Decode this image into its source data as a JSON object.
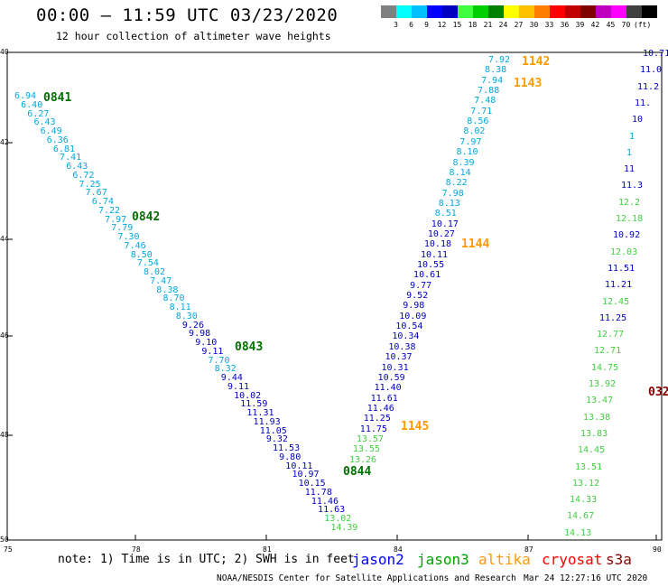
{
  "header": {
    "title": "00:00 – 11:59 UTC 03/23/2020",
    "subtitle": "12 hour collection of altimeter wave heights"
  },
  "scale": {
    "colors": [
      "#808080",
      "#00ffff",
      "#00c0ff",
      "#0000ff",
      "#0000c0",
      "#40ff40",
      "#00d000",
      "#008000",
      "#ffff00",
      "#ffc000",
      "#ff8000",
      "#ff0000",
      "#c00000",
      "#800000",
      "#c000c0",
      "#ff00ff",
      "#404040",
      "#000000"
    ],
    "labels": [
      "3",
      "6",
      "9",
      "12",
      "15",
      "18",
      "21",
      "24",
      "27",
      "30",
      "33",
      "36",
      "39",
      "42",
      "45",
      "70",
      "(ft)"
    ]
  },
  "axes": {
    "lon_labels": [
      "75",
      "78",
      "81",
      "84",
      "87",
      "90"
    ],
    "lat_labels": [
      "40",
      "42",
      "44",
      "46",
      "48",
      "50"
    ]
  },
  "footer": {
    "note": "note: 1) Time is in UTC; 2) SWH is in feet",
    "credit": "NOAA/NESDIS Center for Satellite Applications and Research",
    "timestamp": "Mar 24 12:27:16 UTC 2020"
  },
  "legend": [
    {
      "label": "jason2",
      "color": "#0000ff"
    },
    {
      "label": "jason3",
      "color": "#00a000"
    },
    {
      "label": "altika",
      "color": "#ff9900"
    },
    {
      "label": "cryosat",
      "color": "#ff0000"
    },
    {
      "label": "s3a",
      "color": "#8b0000"
    }
  ],
  "time_labels": [
    {
      "text": "0841",
      "color": "#007000"
    },
    {
      "text": "0842",
      "color": "#007000"
    },
    {
      "text": "0843",
      "color": "#007000"
    },
    {
      "text": "0844",
      "color": "#007000"
    },
    {
      "text": "1142",
      "color": "#ff9900"
    },
    {
      "text": "1143",
      "color": "#ff9900"
    },
    {
      "text": "1144",
      "color": "#ff9900"
    },
    {
      "text": "1145",
      "color": "#ff9900"
    },
    {
      "text": "032",
      "color": "#8b0000"
    }
  ],
  "track_a": [
    "6.94",
    "6.40",
    "6.27",
    "6.43",
    "6.49",
    "6.36",
    "6.81",
    "7.41",
    "6.43",
    "6.72",
    "7.25",
    "7.67",
    "6.74",
    "7.22",
    "7.97",
    "7.79",
    "7.30",
    "7.46",
    "8.50",
    "7.54",
    "8.02",
    "7.47",
    "8.38",
    "8.70",
    "8.11",
    "8.30",
    "9.26",
    "9.98",
    "9.10",
    "9.11",
    "7.70",
    "8.32",
    "9.44",
    "9.11",
    "10.02",
    "11.59",
    "11.31",
    "11.93",
    "11.05",
    "9.32",
    "11.53",
    "9.80",
    "10.11",
    "10.97",
    "10.15",
    "11.78",
    "11.46",
    "11.63",
    "13.02",
    "14.39"
  ],
  "track_b": [
    "7.92",
    "8.38",
    "7.94",
    "7.88",
    "7.48",
    "7.71",
    "8.56",
    "8.02",
    "7.97",
    "8.10",
    "8.39",
    "8.14",
    "8.22",
    "7.98",
    "8.13",
    "8.51",
    "10.17",
    "10.27",
    "10.18",
    "10.11",
    "10.55",
    "10.61",
    "9.77",
    "9.52",
    "9.98",
    "10.09",
    "10.54",
    "10.34",
    "10.38",
    "10.37",
    "10.31",
    "10.59",
    "11.40",
    "11.61",
    "11.46",
    "11.25",
    "11.75",
    "13.57",
    "13.55",
    "13.26"
  ],
  "track_c": [
    "10.71",
    "11.0",
    "11.2",
    "11.",
    "10",
    "1",
    "1",
    "11",
    "11.3",
    "12.2",
    "12.18",
    "10.92",
    "12.03",
    "11.51",
    "11.21",
    "12.45",
    "11.25",
    "12.77",
    "12.71",
    "14.75",
    "13.92",
    "13.47",
    "13.38",
    "13.83",
    "14.45",
    "13.51",
    "13.12",
    "14.33",
    "14.67",
    "14.13"
  ]
}
